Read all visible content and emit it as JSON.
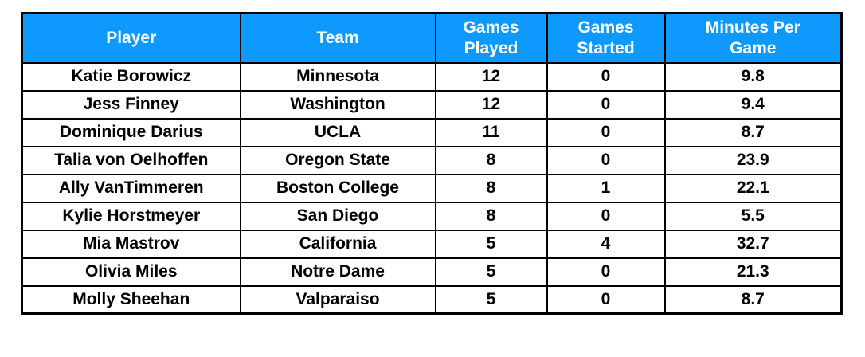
{
  "chart_data": {
    "type": "table",
    "columns": [
      "Player",
      "Team",
      "Games Played",
      "Games Started",
      "Minutes Per Game"
    ],
    "rows": [
      [
        "Katie Borowicz",
        "Minnesota",
        "12",
        "0",
        "9.8"
      ],
      [
        "Jess Finney",
        "Washington",
        "12",
        "0",
        "9.4"
      ],
      [
        "Dominique Darius",
        "UCLA",
        "11",
        "0",
        "8.7"
      ],
      [
        "Talia von Oelhoffen",
        "Oregon State",
        "8",
        "0",
        "23.9"
      ],
      [
        "Ally VanTimmeren",
        "Boston College",
        "8",
        "1",
        "22.1"
      ],
      [
        "Kylie Horstmeyer",
        "San Diego",
        "8",
        "0",
        "5.5"
      ],
      [
        "Mia Mastrov",
        "California",
        "5",
        "4",
        "32.7"
      ],
      [
        "Olivia Miles",
        "Notre Dame",
        "5",
        "0",
        "21.3"
      ],
      [
        "Molly Sheehan",
        "Valparaiso",
        "5",
        "0",
        "8.7"
      ]
    ]
  },
  "colors": {
    "header_background": "#0D99FF",
    "header_text": "#FFFFFF",
    "body_text": "#000000",
    "border": "#000000"
  }
}
